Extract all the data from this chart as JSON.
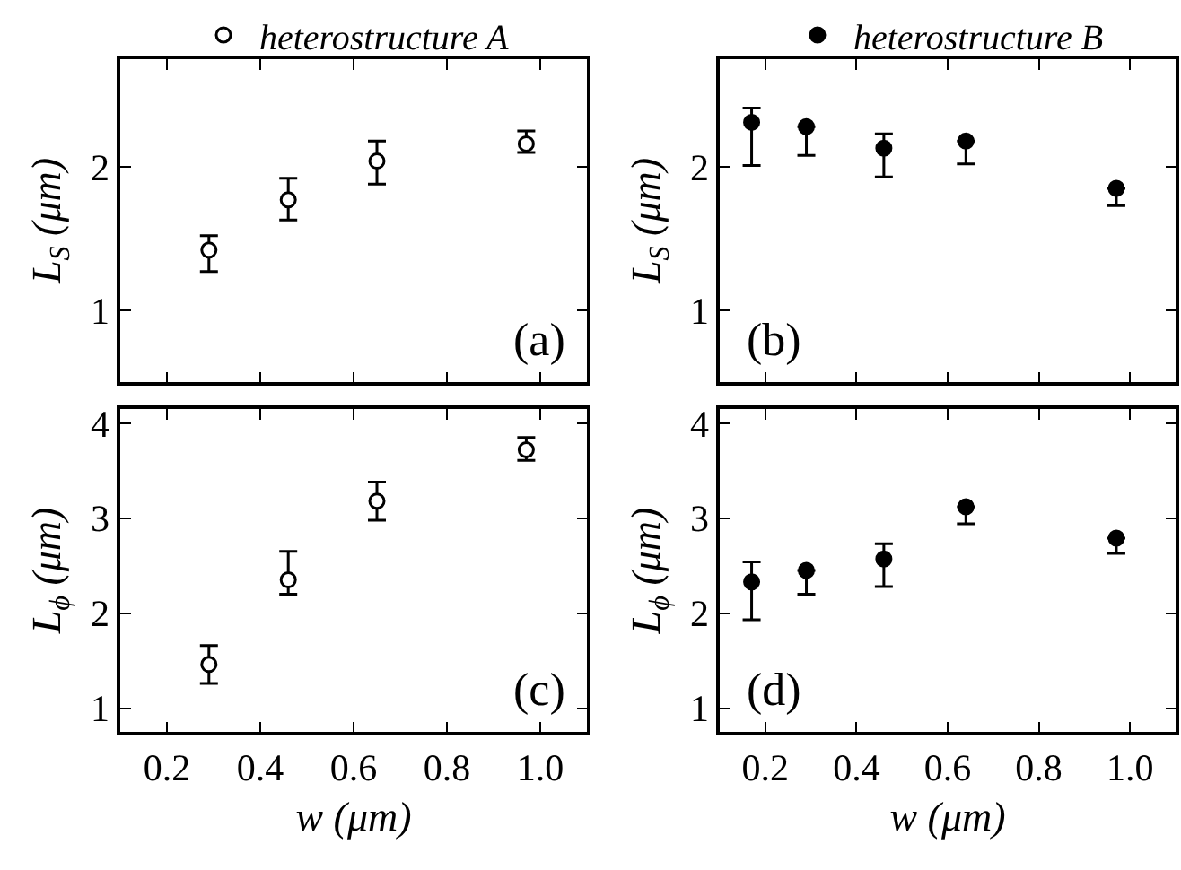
{
  "chart_data": [
    {
      "type": "scatter",
      "marker": "circle",
      "legend": "top",
      "tick_labels": "y",
      "ylabel": "L$_{S}$ (μm)",
      "annotations": [
        "(a)"
      ],
      "xlim": [
        0.1,
        1.1
      ],
      "xticks": [
        {
          "value": 0.2,
          "label": null
        },
        {
          "value": 0.4,
          "label": null
        },
        {
          "value": 0.6,
          "label": null
        },
        {
          "value": 0.8,
          "label": null
        },
        {
          "value": 1.0,
          "label": null
        }
      ],
      "ylim": [
        0.5,
        2.75
      ],
      "yticks": [
        1,
        2
      ],
      "series": [
        {
          "name": "heterostructure A",
          "color": "#ffffff",
          "x": [
            0.29,
            0.46,
            0.65,
            0.97
          ],
          "values": [
            1.42,
            1.77,
            2.04,
            2.16
          ],
          "errors": [
            [
              1.27,
              1.52
            ],
            [
              1.63,
              1.92
            ],
            [
              1.88,
              2.18
            ],
            [
              2.1,
              2.25
            ]
          ]
        }
      ]
    },
    {
      "type": "scatter",
      "marker": "circle",
      "legend": "top",
      "tick_labels": "y",
      "ylabel": "L$_{S}$ (μm)",
      "annotations": [
        "(b)"
      ],
      "xlim": [
        0.1,
        1.1
      ],
      "xticks": [
        {
          "value": 0.2,
          "label": null
        },
        {
          "value": 0.4,
          "label": null
        },
        {
          "value": 0.6,
          "label": null
        },
        {
          "value": 0.8,
          "label": null
        },
        {
          "value": 1.0,
          "label": null
        }
      ],
      "ylim": [
        0.5,
        2.75
      ],
      "yticks": [
        1,
        2
      ],
      "series": [
        {
          "name": "heterostructure B",
          "color": "#000000",
          "x": [
            0.17,
            0.29,
            0.46,
            0.64,
            0.97
          ],
          "values": [
            2.31,
            2.28,
            2.13,
            2.18,
            1.85
          ],
          "errors": [
            [
              2.01,
              2.41
            ],
            [
              2.08,
              2.28
            ],
            [
              1.93,
              2.23
            ],
            [
              2.02,
              2.18
            ],
            [
              1.73,
              1.85
            ]
          ]
        }
      ]
    },
    {
      "type": "scatter",
      "marker": "circle",
      "xlabel": "w (μm)",
      "ylabel": "L$_{ϕ}$ (μm)",
      "annotations": [
        "(c)"
      ],
      "xlim": [
        0.1,
        1.1
      ],
      "xticks": [
        0.2,
        0.4,
        0.6,
        0.8,
        {
          "value": 1.0,
          "label": "1.0"
        }
      ],
      "ylim": [
        0.75,
        4.15
      ],
      "yticks": [
        1,
        2,
        3,
        4
      ],
      "series": [
        {
          "color": "#ffffff",
          "x": [
            0.29,
            0.46,
            0.65,
            0.97
          ],
          "values": [
            1.46,
            2.35,
            3.18,
            3.72
          ],
          "errors": [
            [
              1.26,
              1.66
            ],
            [
              2.2,
              2.65
            ],
            [
              2.98,
              3.38
            ],
            [
              3.61,
              3.85
            ]
          ]
        }
      ]
    },
    {
      "type": "scatter",
      "marker": "circle",
      "xlabel": "w (μm)",
      "ylabel": "L$_{ϕ}$ (μm)",
      "annotations": [
        "(d)"
      ],
      "xlim": [
        0.1,
        1.1
      ],
      "xticks": [
        0.2,
        0.4,
        0.6,
        0.8,
        {
          "value": 1.0,
          "label": "1.0"
        }
      ],
      "ylim": [
        0.75,
        4.15
      ],
      "yticks": [
        1,
        2,
        3,
        4
      ],
      "series": [
        {
          "color": "#000000",
          "x": [
            0.17,
            0.29,
            0.46,
            0.64,
            0.97
          ],
          "values": [
            2.33,
            2.45,
            2.57,
            3.12,
            2.79
          ],
          "errors": [
            [
              1.93,
              2.54
            ],
            [
              2.2,
              2.45
            ],
            [
              2.28,
              2.73
            ],
            [
              2.94,
              3.12
            ],
            [
              2.63,
              2.79
            ]
          ]
        }
      ]
    }
  ]
}
